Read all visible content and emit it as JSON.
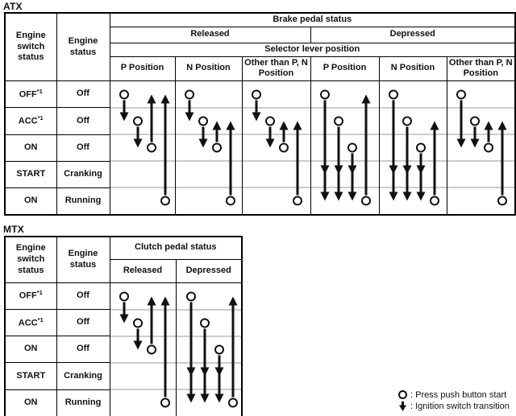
{
  "legend": {
    "press_label": ": Press push button start",
    "transition_label": ": Ignition switch transition"
  },
  "atx": {
    "label": "ATX",
    "engine_switch_header": "Engine switch status",
    "engine_status_header": "Engine status",
    "pedal_header": "Brake pedal status",
    "pedal_states": [
      "Released",
      "Depressed"
    ],
    "selector_header": "Selector lever position",
    "rows": [
      {
        "switch": "OFF",
        "sup": "*1",
        "status": "Off"
      },
      {
        "switch": "ACC",
        "sup": "*1",
        "status": "Off"
      },
      {
        "switch": "ON",
        "sup": "",
        "status": "Off"
      },
      {
        "switch": "START",
        "sup": "",
        "status": "Cranking"
      },
      {
        "switch": "ON",
        "sup": "",
        "status": "Running"
      }
    ],
    "columns": [
      {
        "label": "P Position",
        "glyphs": [
          {
            "x": 17,
            "dir": "down",
            "circle": 0,
            "heads": [
              1
            ]
          },
          {
            "x": 34,
            "dir": "down",
            "circle": 1,
            "heads": [
              2
            ]
          },
          {
            "x": 51,
            "dir": "up",
            "circle": 2,
            "heads": [
              0
            ]
          },
          {
            "x": 68,
            "dir": "up",
            "circle": 4,
            "heads": [
              0
            ]
          }
        ]
      },
      {
        "label": "N Position",
        "glyphs": [
          {
            "x": 17,
            "dir": "down",
            "circle": 0,
            "heads": [
              1
            ]
          },
          {
            "x": 34,
            "dir": "down",
            "circle": 1,
            "heads": [
              2
            ]
          },
          {
            "x": 51,
            "dir": "up",
            "circle": 2,
            "heads": [
              1
            ]
          },
          {
            "x": 68,
            "dir": "up",
            "circle": 4,
            "heads": [
              1
            ]
          }
        ]
      },
      {
        "label": "Other than P, N Position",
        "glyphs": [
          {
            "x": 17,
            "dir": "down",
            "circle": 0,
            "heads": [
              1
            ]
          },
          {
            "x": 34,
            "dir": "down",
            "circle": 1,
            "heads": [
              2
            ]
          },
          {
            "x": 51,
            "dir": "up",
            "circle": 2,
            "heads": [
              1
            ]
          },
          {
            "x": 68,
            "dir": "up",
            "circle": 4,
            "heads": [
              1
            ]
          }
        ]
      },
      {
        "label": "P Position",
        "glyphs": [
          {
            "x": 17,
            "dir": "down",
            "circle": 0,
            "heads": [
              3,
              4
            ]
          },
          {
            "x": 34,
            "dir": "down",
            "circle": 1,
            "heads": [
              3,
              4
            ]
          },
          {
            "x": 51,
            "dir": "down",
            "circle": 2,
            "heads": [
              3,
              4
            ]
          },
          {
            "x": 68,
            "dir": "up",
            "circle": 4,
            "heads": [
              0
            ]
          }
        ]
      },
      {
        "label": "N Position",
        "glyphs": [
          {
            "x": 17,
            "dir": "down",
            "circle": 0,
            "heads": [
              3,
              4
            ]
          },
          {
            "x": 34,
            "dir": "down",
            "circle": 1,
            "heads": [
              3,
              4
            ]
          },
          {
            "x": 51,
            "dir": "down",
            "circle": 2,
            "heads": [
              3,
              4
            ]
          },
          {
            "x": 68,
            "dir": "up",
            "circle": 4,
            "heads": [
              1
            ]
          }
        ]
      },
      {
        "label": "Other than P, N Position",
        "glyphs": [
          {
            "x": 17,
            "dir": "down",
            "circle": 0,
            "heads": [
              2
            ]
          },
          {
            "x": 34,
            "dir": "down",
            "circle": 1,
            "heads": [
              2
            ]
          },
          {
            "x": 51,
            "dir": "up",
            "circle": 2,
            "heads": [
              1
            ]
          },
          {
            "x": 68,
            "dir": "up",
            "circle": 4,
            "heads": [
              1
            ]
          }
        ]
      }
    ]
  },
  "mtx": {
    "label": "MTX",
    "engine_switch_header": "Engine switch status",
    "engine_status_header": "Engine status",
    "pedal_header": "Clutch pedal status",
    "rows": [
      {
        "switch": "OFF",
        "sup": "*1",
        "status": "Off"
      },
      {
        "switch": "ACC",
        "sup": "*1",
        "status": "Off"
      },
      {
        "switch": "ON",
        "sup": "",
        "status": "Off"
      },
      {
        "switch": "START",
        "sup": "",
        "status": "Cranking"
      },
      {
        "switch": "ON",
        "sup": "",
        "status": "Running"
      }
    ],
    "columns": [
      {
        "label": "Released",
        "glyphs": [
          {
            "x": 17,
            "dir": "down",
            "circle": 0,
            "heads": [
              1
            ]
          },
          {
            "x": 34,
            "dir": "down",
            "circle": 1,
            "heads": [
              2
            ]
          },
          {
            "x": 51,
            "dir": "up",
            "circle": 2,
            "heads": [
              0
            ]
          },
          {
            "x": 68,
            "dir": "up",
            "circle": 4,
            "heads": [
              0
            ]
          }
        ]
      },
      {
        "label": "Depressed",
        "glyphs": [
          {
            "x": 18,
            "dir": "down",
            "circle": 0,
            "heads": [
              3,
              4
            ]
          },
          {
            "x": 35,
            "dir": "down",
            "circle": 1,
            "heads": [
              3,
              4
            ]
          },
          {
            "x": 53,
            "dir": "down",
            "circle": 2,
            "heads": [
              3,
              4
            ]
          },
          {
            "x": 70,
            "dir": "up",
            "circle": 4,
            "heads": [
              0
            ]
          }
        ]
      }
    ]
  },
  "colors": {
    "ink": "#111111",
    "grid_line": "#9a9a9a",
    "border": "#000000",
    "background": "#ffffff"
  }
}
